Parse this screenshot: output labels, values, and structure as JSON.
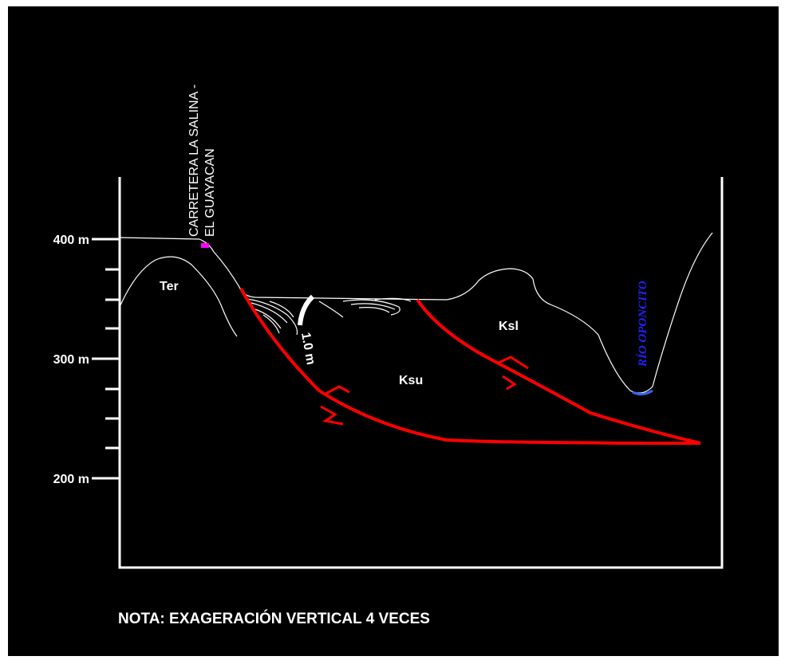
{
  "axis": {
    "labels": [
      "400 m",
      "300 m",
      "200 m"
    ]
  },
  "road": {
    "lines": [
      "CARRETERA LA SALINA -",
      "EL GUAYACAN"
    ]
  },
  "units": [
    "Ter",
    "Ksu",
    "Ksl"
  ],
  "thickness": "1.0 m",
  "river": "RÍO OPONCITO",
  "note": "NOTA: EXAGERACIÓN VERTICAL 4 VECES"
}
